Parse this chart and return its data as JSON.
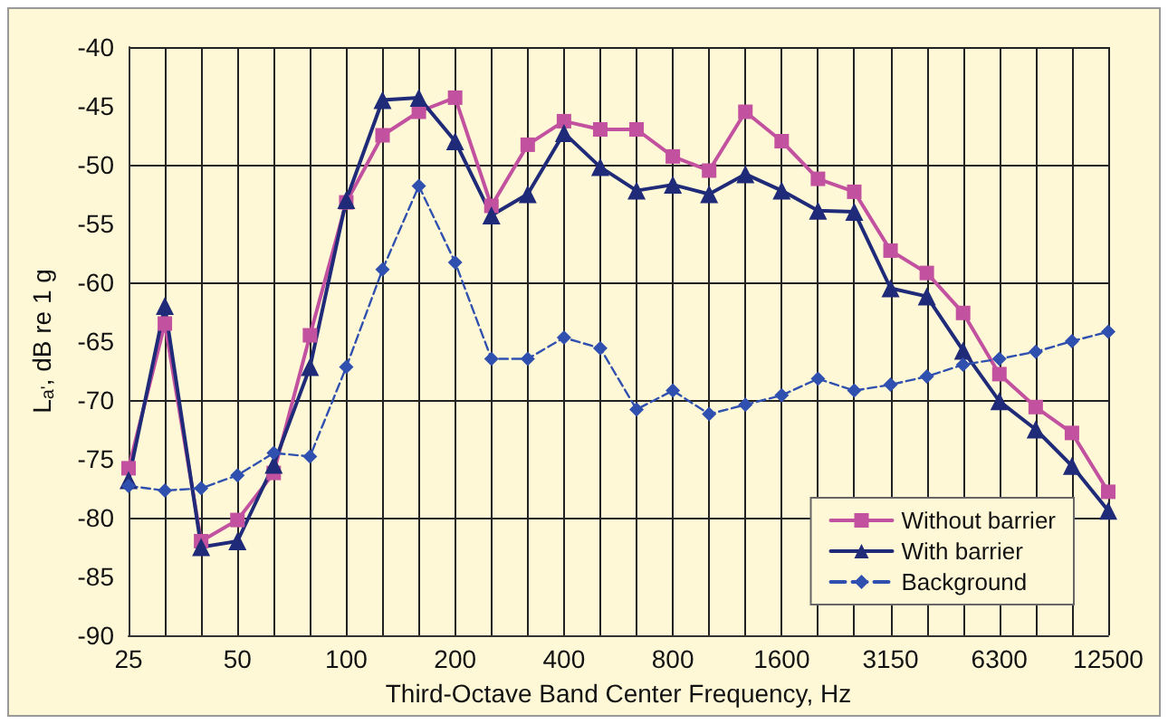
{
  "chart_data": {
    "type": "line",
    "xlabel": "Third-Octave Band Center Frequency, Hz",
    "ylabel": "L$_{a'}$, dB re 1 g",
    "categories": [
      "25",
      null,
      null,
      "50",
      null,
      null,
      "100",
      null,
      null,
      "200",
      null,
      null,
      "400",
      null,
      null,
      "800",
      null,
      null,
      "1600",
      null,
      null,
      "3150",
      null,
      null,
      "6300",
      null,
      null,
      "12500"
    ],
    "series": [
      {
        "name": "Without barrier",
        "color": "#c2519f",
        "marker": "square",
        "line_style": "solid",
        "values": [
          -75.8,
          -63.5,
          -82,
          -80.2,
          -76.2,
          -64.5,
          -53.2,
          -47.5,
          -45.5,
          -44.3,
          -53.5,
          -48.3,
          -46.3,
          -47,
          -47,
          -49.3,
          -50.5,
          -45.5,
          -48,
          -51.2,
          -52.3,
          -57.3,
          -59.2,
          -62.6,
          -67.8,
          -70.6,
          -72.8,
          -77.8
        ]
      },
      {
        "name": "With barrier",
        "color": "#1f2a78",
        "marker": "triangle",
        "line_style": "solid",
        "values": [
          -76.8,
          -62,
          -82.5,
          -82,
          -75.5,
          -67.2,
          -53,
          -44.5,
          -44.3,
          -48,
          -54.3,
          -52.5,
          -47.3,
          -50.2,
          -52.2,
          -51.7,
          -52.5,
          -50.8,
          -52.2,
          -53.9,
          -54,
          -60.5,
          -61.2,
          -65.8,
          -70.1,
          -72.5,
          -75.6,
          -79.4
        ]
      },
      {
        "name": "Background",
        "color": "#3050b0",
        "marker": "diamond",
        "line_style": "dashed",
        "values": [
          -77.3,
          -77.7,
          -77.5,
          -76.4,
          -74.5,
          -74.8,
          -67.2,
          -58.9,
          -51.8,
          -58.3,
          -66.5,
          -66.5,
          -64.7,
          -65.6,
          -70.8,
          -69.2,
          -71.2,
          -70.4,
          -69.6,
          -68.2,
          -69.2,
          -68.7,
          -68,
          -67,
          -66.5,
          -65.9,
          -65,
          -64.2
        ]
      }
    ],
    "ylim": [
      -90,
      -40
    ],
    "yticks": [
      -90,
      -85,
      -80,
      -75,
      -70,
      -65,
      -60,
      -55,
      -50,
      -45,
      -40
    ],
    "grid": true,
    "legend": "bottom right"
  }
}
